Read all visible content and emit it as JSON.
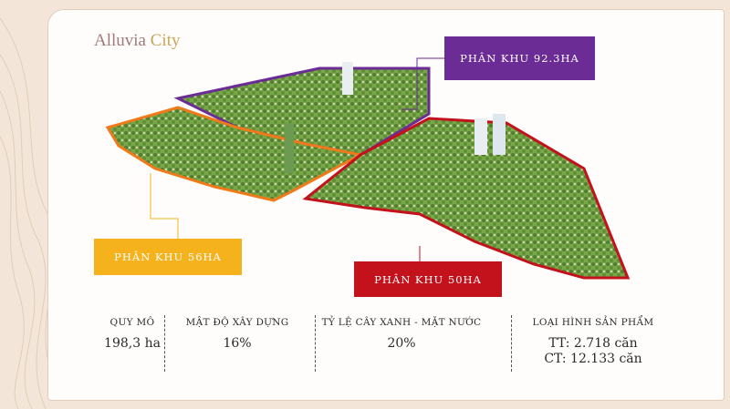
{
  "brand": {
    "name_part1": "Alluvia",
    "name_part2": " City"
  },
  "zones": [
    {
      "label": "PHÂN KHU 92.3HA",
      "color": "#6b2c96"
    },
    {
      "label": "PHÂN KHU 56HA",
      "color": "#f5b21c"
    },
    {
      "label": "PHÂN KHU 50HA",
      "color": "#c3121c"
    }
  ],
  "stats": [
    {
      "label": "QUY MÔ",
      "values": [
        "198,3 ha"
      ]
    },
    {
      "label": "MẬT ĐỘ XÂY DỰNG",
      "values": [
        "16%"
      ]
    },
    {
      "label": "TỶ LỆ CÂY XANH - MẶT NƯỚC",
      "values": [
        "20%"
      ]
    },
    {
      "label": "LOẠI HÌNH SẢN PHẨM",
      "values": [
        "TT: 2.718 căn",
        "CT: 12.133 căn"
      ]
    }
  ]
}
